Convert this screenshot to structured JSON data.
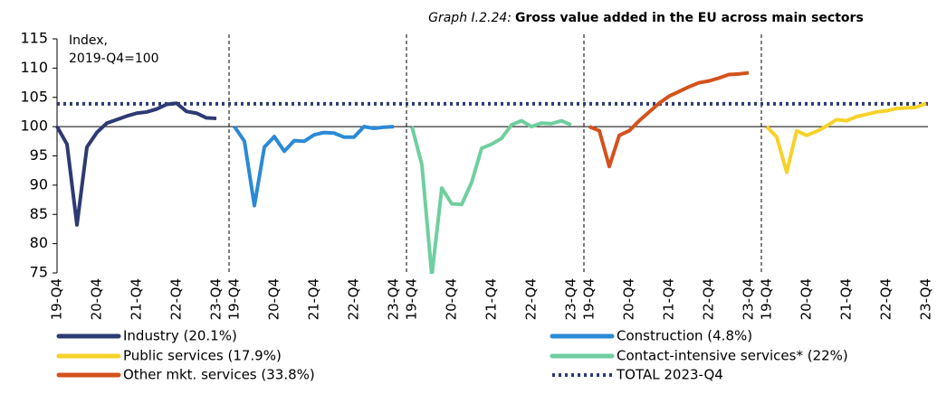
{
  "chart_data": {
    "type": "line",
    "title_prefix": "Graph I.2.24:",
    "title": "Gross value added in the EU across main sectors",
    "y_label": [
      "Index,",
      "2019-Q4=100"
    ],
    "categories": [
      "19-Q4",
      null,
      null,
      null,
      "20-Q4",
      null,
      null,
      null,
      "21-Q4",
      null,
      null,
      null,
      "22-Q4",
      null,
      null,
      null,
      "23-Q4"
    ],
    "ylim": [
      75,
      115
    ],
    "yticks": [
      75,
      80,
      85,
      90,
      95,
      100,
      105,
      110,
      115
    ],
    "baseline": 100,
    "series": [
      {
        "name": "Industry (20.1%)",
        "color": "#2d3a73",
        "values": [
          100,
          97,
          83.2,
          96.5,
          99,
          100.6,
          101.2,
          101.8,
          102.3,
          102.5,
          103,
          103.8,
          104,
          102.6,
          102.3,
          101.5,
          101.4
        ]
      },
      {
        "name": "Construction (4.8%)",
        "color": "#2b8ad6",
        "values": [
          100,
          97.5,
          86.5,
          96.5,
          98.3,
          95.8,
          97.6,
          97.5,
          98.6,
          99,
          98.9,
          98.2,
          98.2,
          100,
          99.7,
          99.9,
          100
        ]
      },
      {
        "name": "Contact-intensive services* (22%)",
        "color": "#6fcf9e",
        "values": [
          100,
          93.5,
          74.5,
          89.5,
          86.8,
          86.7,
          90.5,
          96.3,
          97,
          98,
          100.3,
          101,
          100,
          100.6,
          100.5,
          101,
          100.3
        ]
      },
      {
        "name": "Other mkt. services (33.8%)",
        "color": "#d4521d",
        "values": [
          100,
          99.3,
          93.2,
          98.5,
          99.3,
          101,
          102.5,
          104,
          105.2,
          106,
          106.8,
          107.5,
          107.8,
          108.3,
          108.9,
          109,
          109.2
        ]
      },
      {
        "name": "Public services (17.9%)",
        "color": "#f6d22a",
        "values": [
          100,
          98.2,
          92.2,
          99.3,
          98.5,
          99.2,
          100.1,
          101.2,
          101,
          101.7,
          102.1,
          102.5,
          102.7,
          103.1,
          103.2,
          103.3,
          104
        ]
      }
    ],
    "reference_line": {
      "name": "TOTAL 2023-Q4",
      "value": 103.9,
      "color": "#2d3a73",
      "style": "dotted"
    }
  }
}
